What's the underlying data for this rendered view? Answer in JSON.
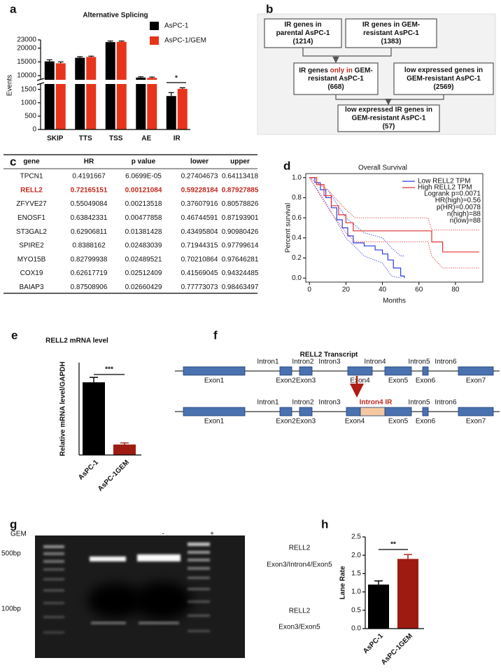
{
  "panel_labels": [
    "a",
    "b",
    "c",
    "d",
    "e",
    "f",
    "g",
    "h"
  ],
  "chart_data": [
    {
      "type": "bar",
      "title": "Alternative Splicing",
      "y_label": "Events",
      "categories": [
        "SKIP",
        "TTS",
        "TSS",
        "AE",
        "IR"
      ],
      "series": [
        {
          "name": "AsPC-1",
          "color": "#000000",
          "values": [
            15200,
            16500,
            22200,
            9300,
            1250
          ],
          "errors": [
            600,
            400,
            400,
            300,
            130
          ]
        },
        {
          "name": "AsPC-1/GEM",
          "color": "#e8341c",
          "values": [
            14500,
            16800,
            22300,
            9200,
            1520
          ],
          "errors": [
            500,
            300,
            300,
            300,
            40
          ]
        }
      ],
      "ylim": [
        0,
        23000
      ],
      "y_break": [
        1700,
        8500
      ],
      "yticks": [
        0,
        500,
        1000,
        1500,
        10000,
        15000,
        20000,
        23000
      ],
      "annotation": "*",
      "legend": "upper right"
    },
    {
      "type": "line",
      "title": "Overall Survival",
      "x_label": "Months",
      "y_label": "Percent survival",
      "xlim": [
        -2,
        95
      ],
      "ylim": [
        -0.04,
        1.04
      ],
      "xticks": [
        0,
        20,
        40,
        60,
        80
      ],
      "yticks": [
        {
          "value": 0,
          "label": "0.0"
        },
        0.2,
        0.4,
        0.6,
        0.8,
        {
          "value": 1,
          "label": "1.0"
        }
      ],
      "series": [
        {
          "name": "Low RELL2 TPM",
          "color": "#2b3be0",
          "x": [
            0,
            3,
            3,
            6,
            6,
            9,
            9,
            12,
            12,
            15,
            15,
            18,
            18,
            21,
            21,
            24,
            24,
            30,
            30,
            36,
            36,
            40,
            40,
            43,
            43,
            46,
            46,
            50,
            50,
            52,
            52
          ],
          "values": [
            1,
            1,
            0.95,
            0.95,
            0.88,
            0.88,
            0.8,
            0.8,
            0.7,
            0.7,
            0.58,
            0.58,
            0.5,
            0.5,
            0.42,
            0.42,
            0.35,
            0.35,
            0.32,
            0.32,
            0.28,
            0.28,
            0.24,
            0.24,
            0.18,
            0.18,
            0.1,
            0.1,
            0.02,
            0.02,
            0
          ],
          "ci_upper": {
            "x": [
              0,
              10,
              20,
              30,
              40,
              45,
              50,
              52
            ],
            "values": [
              1,
              0.88,
              0.6,
              0.45,
              0.4,
              0.3,
              0.22,
              0.22
            ]
          },
          "ci_lower": {
            "x": [
              0,
              10,
              20,
              30,
              40,
              45,
              50
            ],
            "values": [
              1,
              0.72,
              0.4,
              0.22,
              0.15,
              0.02,
              0
            ]
          }
        },
        {
          "name": "High RELL2 TPM",
          "color": "#e03030",
          "x": [
            0,
            4,
            4,
            8,
            8,
            12,
            12,
            16,
            16,
            20,
            20,
            24,
            24,
            67,
            67,
            73,
            73,
            93
          ],
          "values": [
            1,
            1,
            0.93,
            0.93,
            0.82,
            0.82,
            0.72,
            0.72,
            0.63,
            0.63,
            0.55,
            0.55,
            0.47,
            0.47,
            0.36,
            0.36,
            0.26,
            0.26
          ],
          "ci_upper": {
            "x": [
              0,
              10,
              20,
              25,
              65,
              67,
              93
            ],
            "values": [
              1,
              0.88,
              0.68,
              0.6,
              0.6,
              0.48,
              0.48
            ]
          },
          "ci_lower": {
            "x": [
              0,
              10,
              20,
              25,
              65,
              67,
              73,
              93
            ],
            "values": [
              1,
              0.7,
              0.45,
              0.36,
              0.36,
              0.22,
              0.1,
              0.1
            ]
          }
        }
      ],
      "stats": [
        "Logrank p=0.0071",
        "HR(high)=0.56",
        "p(HR)=0.0078",
        "n(high)=88",
        "n(low)=88"
      ],
      "legend": "upper right"
    },
    {
      "type": "bar",
      "title": "RELL2 mRNA level",
      "y_label": "Relative mRNA level/GAPDH",
      "categories": [
        "AsPC-1",
        "AsPC-1GEM"
      ],
      "values": [
        1.18,
        0.17
      ],
      "errors": [
        0.08,
        0.025
      ],
      "colors": [
        "#000000",
        "#9e1b12"
      ],
      "ylim": [
        0,
        1.5
      ],
      "annotation": "***"
    },
    {
      "type": "bar",
      "y_label": "Lane Rate",
      "categories": [
        "AsPC-1",
        "AsPC-1GEM"
      ],
      "values": [
        1.2,
        1.9
      ],
      "errors": [
        0.1,
        0.12
      ],
      "colors": [
        "#000000",
        "#9e1b12"
      ],
      "ylim": [
        0,
        2.5
      ],
      "yticks": [
        {
          "value": 0,
          "label": "0.0"
        },
        0.5,
        {
          "value": 1,
          "label": "1.0"
        },
        1.5,
        {
          "value": 2,
          "label": "2.0"
        },
        2.5
      ],
      "annotation": "**"
    }
  ],
  "flowchart": {
    "nodes": [
      {
        "lines": [
          "IR genes in",
          "parental AsPC-1",
          "(1214)"
        ]
      },
      {
        "lines": [
          "IR genes in GEM-",
          "resistant AsPC-1",
          "(1383)"
        ]
      },
      {
        "lines": [
          [
            "IR genes ",
            "only in",
            " GEM-"
          ],
          "resistant AsPC-1",
          "(668)"
        ]
      },
      {
        "lines": [
          "low expressed genes in",
          "GEM-resistant AsPC-1",
          "(2569)"
        ]
      },
      {
        "lines": [
          "low expressed IR genes in",
          "GEM-resistant AsPC-1",
          "(57)"
        ]
      }
    ]
  },
  "table": {
    "columns": [
      "gene",
      "HR",
      "p value",
      "lower",
      "upper"
    ],
    "highlight_row": 1,
    "rows": [
      [
        "TPCN1",
        "0.4191667",
        "6.0699E-05",
        "0.27404673",
        "0.64113418"
      ],
      [
        "RELL2",
        "0.72165151",
        "0.00121084",
        "0.59228184",
        "0.87927885"
      ],
      [
        "ZFYVE27",
        "0.55049084",
        "0.00213518",
        "0.37607916",
        "0.80578826"
      ],
      [
        "ENOSF1",
        "0.63842331",
        "0.00477858",
        "0.46744591",
        "0.87193901"
      ],
      [
        "ST3GAL2",
        "0.62906811",
        "0.01381428",
        "0.43495804",
        "0.90980426"
      ],
      [
        "SPIRE2",
        "0.8388162",
        "0.02483039",
        "0.71944315",
        "0.97799614"
      ],
      [
        "MYO15B",
        "0.82799938",
        "0.02489521",
        "0.70210864",
        "0.97646281"
      ],
      [
        "COX19",
        "0.62617719",
        "0.02512409",
        "0.41569045",
        "0.94324485"
      ],
      [
        "BAIAP3",
        "0.87508906",
        "0.02660429",
        "0.77773073",
        "0.98463497"
      ]
    ]
  },
  "transcript": {
    "title": "RELL2 Transcript",
    "exons": [
      "Exon1",
      "Exon2",
      "Exon3",
      "Exon4",
      "Exon5",
      "Exon6",
      "Exon7"
    ],
    "introns": [
      "Intron1",
      "Intron2",
      "Intron3",
      "Intron4",
      "Intron5",
      "Intron6"
    ],
    "retained_label": "Intron4 IR"
  },
  "gel": {
    "treatment_label": "GEM",
    "lanes": [
      "-",
      "+"
    ],
    "markers": [
      "500bp",
      "100bp"
    ],
    "bands": [
      {
        "lines": [
          "RELL2",
          "Exon3/Intron4/Exon5"
        ]
      },
      {
        "lines": [
          "RELL2",
          "Exon3/Exon5"
        ]
      }
    ]
  }
}
